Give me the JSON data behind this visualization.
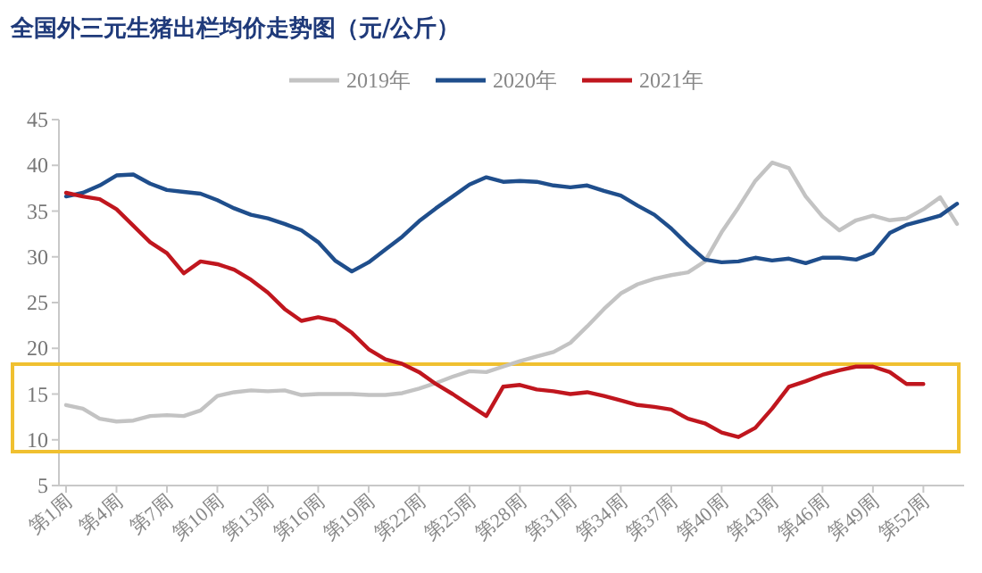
{
  "chart_data": {
    "type": "line",
    "title": "全国外三元生猪出栏均价走势图（元/公斤）",
    "categories": [
      "第1周",
      null,
      null,
      "第4周",
      null,
      null,
      "第7周",
      null,
      null,
      "第10周",
      null,
      null,
      "第13周",
      null,
      null,
      "第16周",
      null,
      null,
      "第19周",
      null,
      null,
      "第22周",
      null,
      null,
      "第25周",
      null,
      null,
      "第28周",
      null,
      null,
      "第31周",
      null,
      null,
      "第34周",
      null,
      null,
      "第37周",
      null,
      null,
      "第40周",
      null,
      null,
      "第43周",
      null,
      null,
      "第46周",
      null,
      null,
      "第49周",
      null,
      null,
      "第52周",
      null,
      null
    ],
    "series": [
      {
        "name": "2019年",
        "color": "#c3c3c3",
        "values": [
          13.8,
          13.4,
          12.3,
          12.0,
          12.1,
          12.6,
          12.7,
          12.6,
          13.2,
          14.8,
          15.2,
          15.4,
          15.3,
          15.4,
          14.9,
          15.0,
          15.0,
          15.0,
          14.9,
          14.9,
          15.1,
          15.6,
          16.2,
          16.9,
          17.5,
          17.4,
          18.0,
          18.6,
          19.1,
          19.6,
          20.6,
          22.4,
          24.3,
          26.0,
          27.0,
          27.6,
          28.0,
          28.3,
          29.5,
          32.7,
          35.4,
          38.3,
          40.3,
          39.7,
          36.6,
          34.4,
          32.9,
          34.0,
          34.5,
          34.0,
          34.2,
          35.2,
          36.5,
          33.6
        ]
      },
      {
        "name": "2020年",
        "color": "#1f4e8c",
        "values": [
          36.6,
          37.0,
          37.8,
          38.9,
          39.0,
          38.0,
          37.3,
          37.1,
          36.9,
          36.2,
          35.3,
          34.6,
          34.2,
          33.6,
          32.9,
          31.6,
          29.6,
          28.4,
          29.4,
          30.8,
          32.2,
          33.9,
          35.3,
          36.6,
          37.9,
          38.7,
          38.2,
          38.3,
          38.2,
          37.8,
          37.6,
          37.8,
          37.2,
          36.7,
          35.6,
          34.6,
          33.1,
          31.3,
          29.7,
          29.4,
          29.5,
          29.9,
          29.6,
          29.8,
          29.3,
          29.9,
          29.9,
          29.7,
          30.4,
          32.6,
          33.5,
          34.0,
          34.5,
          35.8
        ]
      },
      {
        "name": "2021年",
        "color": "#c0161e",
        "values": [
          37.0,
          36.6,
          36.3,
          35.2,
          33.4,
          31.6,
          30.4,
          28.2,
          29.5,
          29.2,
          28.6,
          27.5,
          26.1,
          24.3,
          23.0,
          23.4,
          23.0,
          21.7,
          19.9,
          18.8,
          18.3,
          17.4,
          16.1,
          15.0,
          13.8,
          12.6,
          15.8,
          16.0,
          15.5,
          15.3,
          15.0,
          15.2,
          14.8,
          14.3,
          13.8,
          13.6,
          13.3,
          12.3,
          11.8,
          10.8,
          10.3,
          11.3,
          13.4,
          15.8,
          16.4,
          17.1,
          17.6,
          18.0,
          18.0,
          17.4,
          16.1,
          16.1,
          null,
          null
        ]
      }
    ],
    "ylim": [
      5,
      45
    ],
    "yticks": [
      5,
      10,
      15,
      20,
      25,
      30,
      35,
      40,
      45
    ],
    "legend": "top",
    "grid": false,
    "marker": "none",
    "line_style": "solid"
  }
}
